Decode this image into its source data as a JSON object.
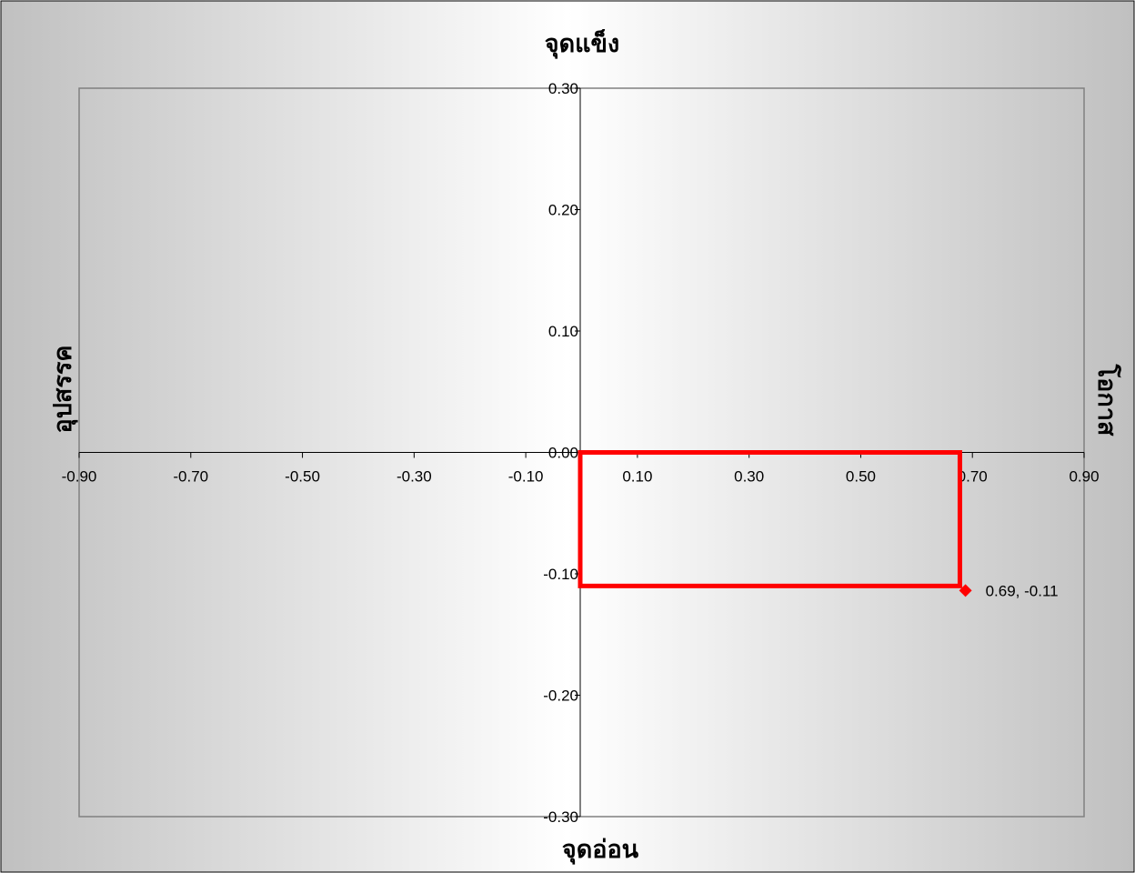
{
  "chart_data": {
    "type": "scatter",
    "title": "",
    "quadrant_labels": {
      "top": "จุดแข็ง",
      "bottom": "จุดอ่อน",
      "left": "อุปสรรค",
      "right": "โอกาส"
    },
    "xlim": [
      -0.9,
      0.9
    ],
    "ylim": [
      -0.3,
      0.3
    ],
    "x_ticks": [
      "-0.90",
      "-0.70",
      "-0.50",
      "-0.30",
      "-0.10",
      "0.10",
      "0.30",
      "0.50",
      "0.70",
      "0.90"
    ],
    "x_tick_values": [
      -0.9,
      -0.7,
      -0.5,
      -0.3,
      -0.1,
      0.1,
      0.3,
      0.5,
      0.7,
      0.9
    ],
    "y_ticks": [
      "0.30",
      "0.20",
      "0.10",
      "0.00",
      "-0.10",
      "-0.20",
      "-0.30"
    ],
    "y_tick_values": [
      0.3,
      0.2,
      0.1,
      0.0,
      -0.1,
      -0.2,
      -0.3
    ],
    "points": [
      {
        "x": 0.69,
        "y": -0.11,
        "label": "0.69, -0.11"
      }
    ],
    "highlight_rect": {
      "x0": 0.0,
      "x1": 0.68,
      "y0": 0.0,
      "y1": -0.11
    },
    "colors": {
      "point": "#ff0000",
      "rect": "#ff0000",
      "background_edge": "#c0c0c0",
      "background_center": "#ffffff"
    },
    "grid": false,
    "legend": "none"
  }
}
